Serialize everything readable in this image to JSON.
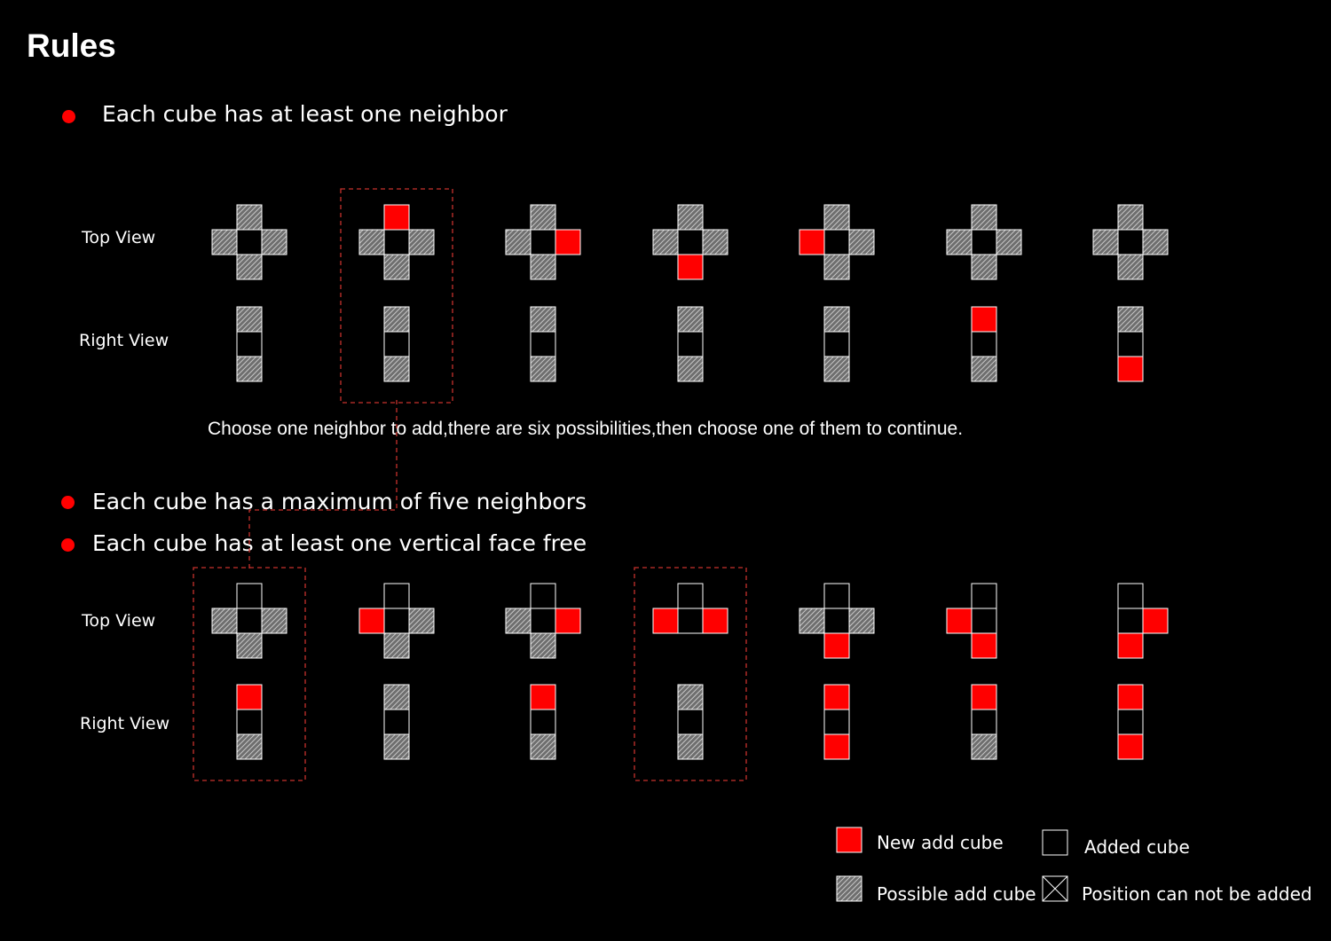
{
  "title": "Rules",
  "rules": [
    "Each cube has at least one neighbor",
    "Each cube has a maximum of five neighbors",
    "Each cube has at least one vertical face free"
  ],
  "view_labels": {
    "top": "Top View",
    "right": "Right View"
  },
  "caption": "Choose one neighbor to add,there are six possibilities,then choose one of them to continue.",
  "legend": {
    "new": "New add cube",
    "added": "Added cube",
    "possible": "Possible add cube",
    "blocked": "Position can not be added"
  },
  "colors": {
    "background": "#000000",
    "new_cube": "#ff0000",
    "outline": "#ffffff",
    "hatch": "#b4b4b4",
    "connector": "#c8322d"
  },
  "cell_states": {
    "N": "new add cube",
    "A": "added cube",
    "P": "possible add cube"
  },
  "diagram_rows": [
    {
      "columns": [
        {
          "top": {
            "up": "P",
            "left": "P",
            "center": "A",
            "right": "P",
            "down": "P"
          },
          "side": [
            "P",
            "A",
            "P"
          ]
        },
        {
          "top": {
            "up": "N",
            "left": "P",
            "center": "A",
            "right": "P",
            "down": "P"
          },
          "side": [
            "P",
            "A",
            "P"
          ],
          "highlighted": true
        },
        {
          "top": {
            "up": "P",
            "left": "P",
            "center": "A",
            "right": "N",
            "down": "P"
          },
          "side": [
            "P",
            "A",
            "P"
          ]
        },
        {
          "top": {
            "up": "P",
            "left": "P",
            "center": "A",
            "right": "P",
            "down": "N"
          },
          "side": [
            "P",
            "A",
            "P"
          ]
        },
        {
          "top": {
            "up": "P",
            "left": "N",
            "center": "A",
            "right": "P",
            "down": "P"
          },
          "side": [
            "P",
            "A",
            "P"
          ]
        },
        {
          "top": {
            "up": "P",
            "left": "P",
            "center": "A",
            "right": "P",
            "down": "P"
          },
          "side": [
            "N",
            "A",
            "P"
          ]
        },
        {
          "top": {
            "up": "P",
            "left": "P",
            "center": "A",
            "right": "P",
            "down": "P"
          },
          "side": [
            "P",
            "A",
            "N"
          ]
        }
      ]
    },
    {
      "columns": [
        {
          "top": {
            "up": "A",
            "left": "P",
            "center": "A",
            "right": "P",
            "down": "P"
          },
          "side": [
            "N",
            "A",
            "P"
          ],
          "highlighted": true
        },
        {
          "top": {
            "up": "A",
            "left": "N",
            "center": "A",
            "right": "P",
            "down": "P"
          },
          "side": [
            "P",
            "A",
            "P"
          ]
        },
        {
          "top": {
            "up": "A",
            "left": "P",
            "center": "A",
            "right": "N",
            "down": "P"
          },
          "side": [
            "N",
            "A",
            "P"
          ]
        },
        {
          "top": {
            "up": "A",
            "left": "N",
            "center": "A",
            "right": "N",
            "down": null
          },
          "side": [
            "P",
            "A",
            "P"
          ],
          "highlighted": true
        },
        {
          "top": {
            "up": "A",
            "left": "P",
            "center": "A",
            "right": "P",
            "down": "N"
          },
          "side": [
            "N",
            "A",
            "N"
          ]
        },
        {
          "top": {
            "up": "A",
            "left": "N",
            "center": "A",
            "right": null,
            "down": "N"
          },
          "side": [
            "N",
            "A",
            "P"
          ]
        },
        {
          "top": {
            "up": "A",
            "left": null,
            "center": "A",
            "right": "N",
            "down": "N"
          },
          "side": [
            "N",
            "A",
            "N"
          ]
        }
      ]
    }
  ]
}
